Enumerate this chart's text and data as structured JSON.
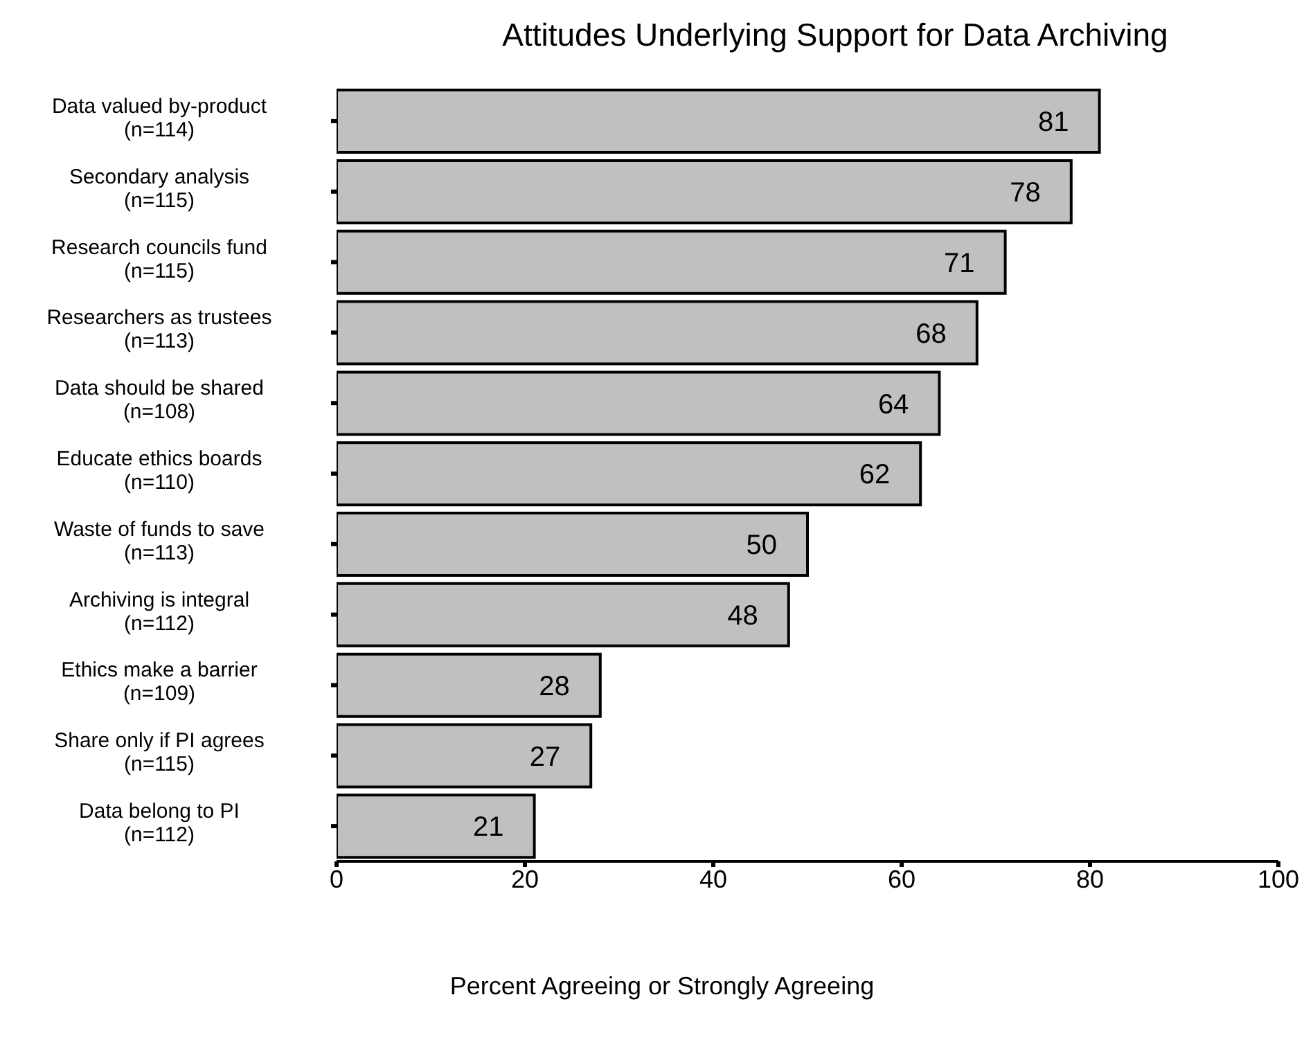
{
  "chart_data": {
    "type": "bar",
    "orientation": "horizontal",
    "title": "Attitudes Underlying Support for Data Archiving",
    "xlabel": "Percent Agreeing or Strongly Agreeing",
    "categories": [
      "Data valued by-product\n(n=114)",
      "Secondary analysis\n(n=115)",
      "Research councils fund\n(n=115)",
      "Researchers as trustees\n(n=113)",
      "Data should be shared\n(n=108)",
      "Educate ethics boards\n(n=110)",
      "Waste of funds to save\n(n=113)",
      "Archiving is integral\n(n=112)",
      "Ethics make a barrier\n(n=109)",
      "Share only if PI agrees\n(n=115)",
      "Data belong to PI\n(n=112)"
    ],
    "values": [
      81,
      78,
      71,
      68,
      64,
      62,
      50,
      48,
      28,
      27,
      21
    ],
    "color": "#c0c0c0",
    "xlim": [
      0,
      100
    ],
    "xticks": [
      0,
      20,
      40,
      60,
      80,
      100
    ],
    "grid": false,
    "data_labels": true
  }
}
